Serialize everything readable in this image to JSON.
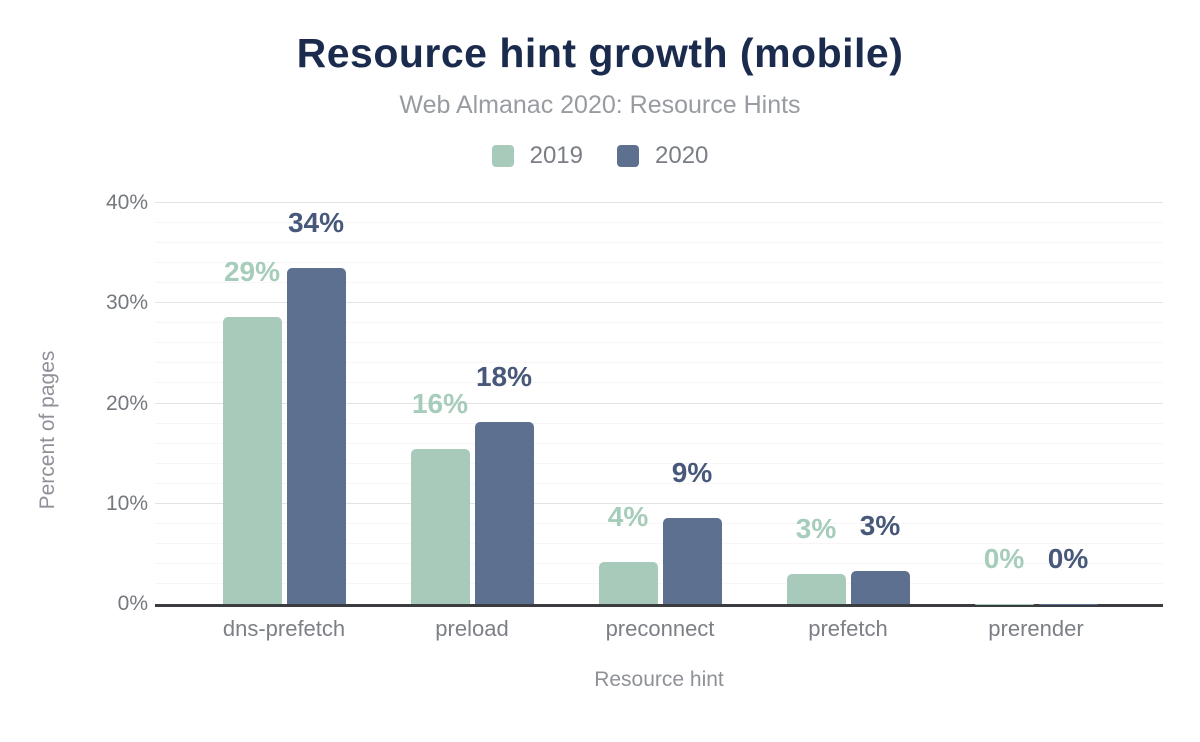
{
  "chart_data": {
    "type": "bar",
    "title": "Resource hint growth (mobile)",
    "subtitle": "Web Almanac 2020: Resource Hints",
    "xlabel": "Resource hint",
    "ylabel": "Percent of pages",
    "ylim": [
      0,
      40
    ],
    "yticks": [
      {
        "value": 0,
        "label": "0%"
      },
      {
        "value": 10,
        "label": "10%"
      },
      {
        "value": 20,
        "label": "20%"
      },
      {
        "value": 30,
        "label": "30%"
      },
      {
        "value": 40,
        "label": "40%"
      }
    ],
    "grid": true,
    "minor_grid_step": 2,
    "major_grid_step": 10,
    "legend_position": "top",
    "categories": [
      "dns-prefetch",
      "preload",
      "preconnect",
      "prefetch",
      "prerender"
    ],
    "series": [
      {
        "name": "2019",
        "color": "#a8cabb",
        "label_color": "#a6ccba",
        "values": [
          28.6,
          15.5,
          4.2,
          3.0,
          0.05
        ],
        "labels": [
          "29%",
          "16%",
          "4%",
          "3%",
          "0%"
        ]
      },
      {
        "name": "2020",
        "color": "#5e7090",
        "label_color": "#47587a",
        "values": [
          33.5,
          18.2,
          8.6,
          3.3,
          0.05
        ],
        "labels": [
          "34%",
          "18%",
          "9%",
          "3%",
          "0%"
        ]
      }
    ]
  },
  "colors": {
    "title": "#1b2b4d",
    "subtitle": "#989ca2",
    "tick_label": "#75797f",
    "category_label": "#7c8086",
    "axis_title": "#8e9298",
    "axis_line": "#3a3c40",
    "grid_major": "#e4e3e3",
    "grid_minor": "#f7f5f5",
    "background": "#ffffff"
  }
}
